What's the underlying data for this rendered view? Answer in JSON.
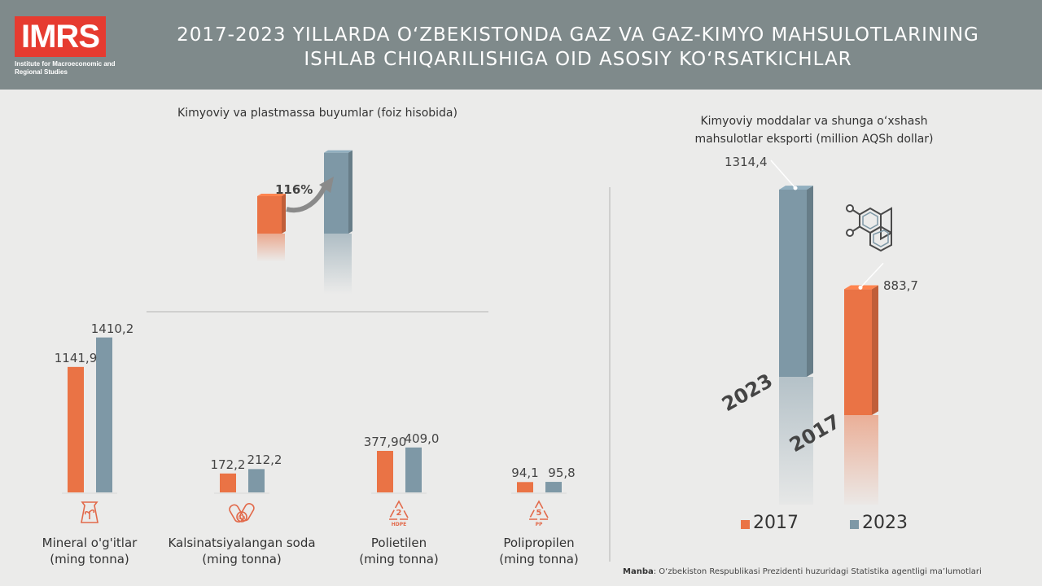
{
  "header": {
    "logo_text": "IMRS",
    "logo_sub": "Institute for Macroeconomic and Regional Studies",
    "title_line1": "2017-2023 YILLARDA O‘ZBEKISTONDA GAZ VA GAZ-KIMYO MAHSULOTLARINING",
    "title_line2": "ISHLAB CHIQARILISHIGA OID ASOSIY KO‘RSATKICHLAR"
  },
  "colors": {
    "y2017": "#ea7345",
    "y2023": "#7e98a6",
    "header": "#7f8a8b",
    "logo": "#e63b30"
  },
  "chart_data": [
    {
      "type": "bar",
      "title": "Kimyoviy va plastmassa buyumlar (foiz hisobida)",
      "categories": [
        "2017",
        "2023"
      ],
      "values": [
        100,
        216
      ],
      "annotation": "116%"
    },
    {
      "type": "bar",
      "categories": [
        "Mineral o'g'itlar",
        "Kalsinatsiyalangan soda",
        "Polietilen",
        "Polipropilen"
      ],
      "units": [
        "(ming tonna)",
        "(ming tonna)",
        "(ming tonna)",
        "(ming tonna)"
      ],
      "series": [
        {
          "name": "2017",
          "values": [
            1141.9,
            172.2,
            377.9,
            94.1
          ],
          "labels": [
            "1141,9",
            "172,2",
            "377,90",
            "94,1"
          ]
        },
        {
          "name": "2023",
          "values": [
            1410.2,
            212.2,
            409.0,
            95.8
          ],
          "labels": [
            "1410,2",
            "212,2",
            "409,0",
            "95,8"
          ]
        }
      ],
      "icons": [
        "fertilizer-bag-icon",
        "soda-capsule-icon",
        "hdpe-recycle-icon",
        "pp-recycle-icon"
      ],
      "icon_texts": [
        "",
        "Ca",
        "2",
        "5"
      ],
      "icon_subs": [
        "",
        "",
        "HDPE",
        "PP"
      ]
    },
    {
      "type": "bar",
      "title_line1": "Kimyoviy moddalar va shunga o‘xshash",
      "title_line2": "mahsulotlar eksporti (million AQSh dollar)",
      "categories": [
        "2023",
        "2017"
      ],
      "values": [
        1314.4,
        883.7
      ],
      "labels": [
        "1314,4",
        "883,7"
      ]
    }
  ],
  "legend": [
    {
      "name": "2017",
      "color": "#ea7345"
    },
    {
      "name": "2023",
      "color": "#7e98a6"
    }
  ],
  "source": {
    "label": "Manba",
    "text": ": O‘zbekiston Respublikasi Prezidenti huzuridagi Statistika agentligi ma’lumotlari"
  }
}
